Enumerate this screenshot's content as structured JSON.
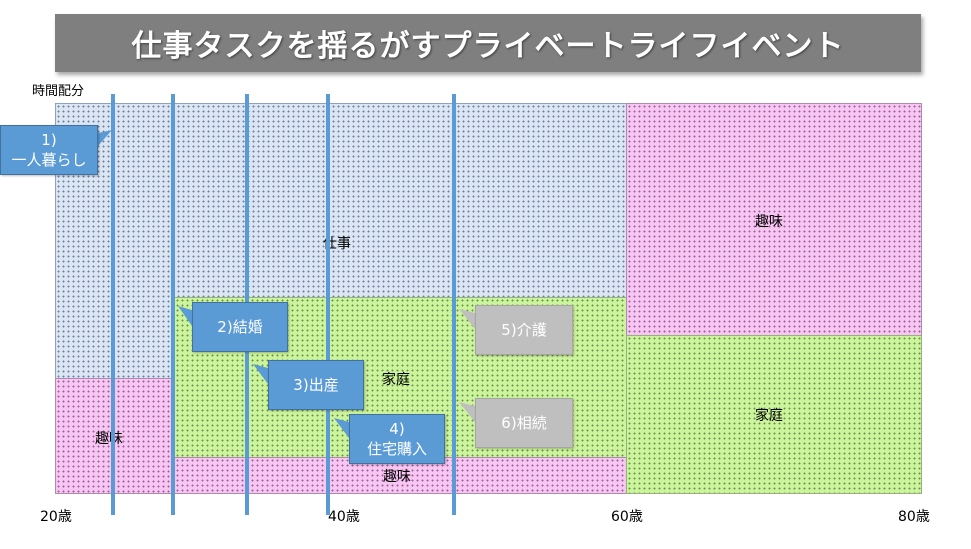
{
  "title": "仕事タスクを揺るがすプライベートライフイベント",
  "y_axis_label": "時間配分",
  "x_axis": {
    "ticks": [
      "20歳",
      "40歳",
      "60歳",
      "80歳"
    ]
  },
  "regions": {
    "work": "仕事",
    "family_mid": "家庭",
    "hobby_left": "趣味",
    "hobby_bottom": "趣味",
    "hobby_right": "趣味",
    "family_right": "家庭"
  },
  "events": {
    "e1": {
      "num": "1)",
      "text": "一人暮らし"
    },
    "e2": {
      "text": "2)結婚"
    },
    "e3": {
      "text": "3)出産"
    },
    "e4": {
      "num": "4)",
      "text": "住宅購入"
    },
    "e5": {
      "text": "5)介護"
    },
    "e6": {
      "text": "6)相続"
    }
  },
  "colors": {
    "title_bg": "#7f7f7f",
    "work": "#dce6f2",
    "hobby": "#f8c6f2",
    "family": "#ccf49c",
    "event_line": "#5b9bd5",
    "event_box": "#5b9bd5",
    "future_event_box": "#bfbfbf"
  }
}
